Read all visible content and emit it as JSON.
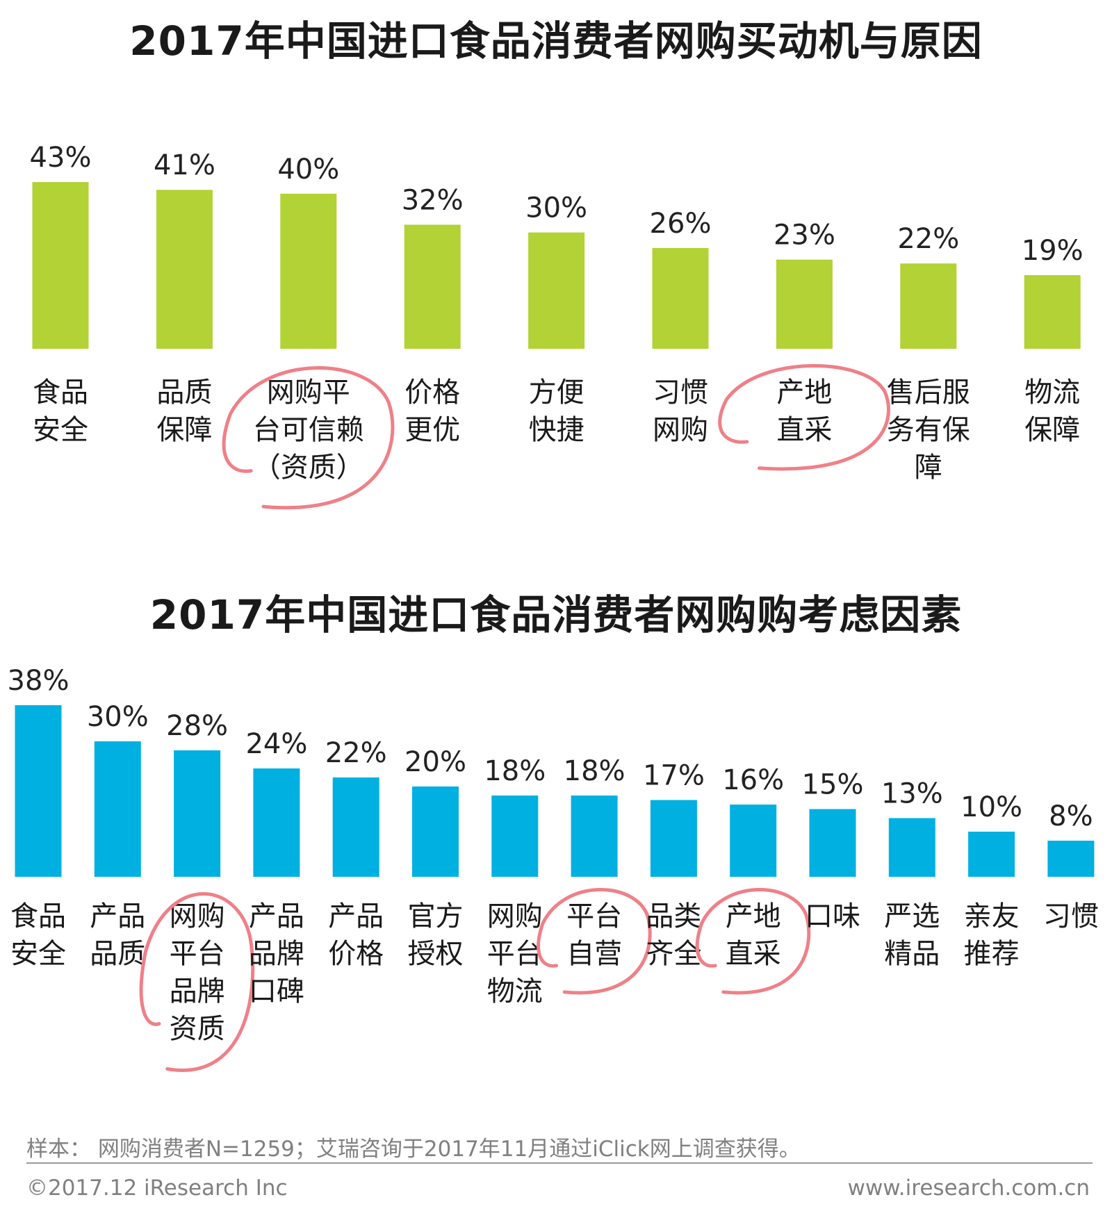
{
  "chart_data": [
    {
      "type": "bar",
      "title": "2017年中国进口食品消费者网购买动机与原因",
      "categories": [
        [
          "食品",
          "安全"
        ],
        [
          "品质",
          "保障"
        ],
        [
          "网购平",
          "台可信赖",
          "（资质）"
        ],
        [
          "价格",
          "更优"
        ],
        [
          "方便",
          "快捷"
        ],
        [
          "习惯",
          "网购"
        ],
        [
          "产地",
          "直采"
        ],
        [
          "售后服",
          "务有保",
          "障"
        ],
        [
          "物流",
          "保障"
        ]
      ],
      "values": [
        43,
        41,
        40,
        32,
        30,
        26,
        23,
        22,
        19
      ],
      "value_labels": [
        "43%",
        "41%",
        "40%",
        "32%",
        "30%",
        "26%",
        "23%",
        "22%",
        "19%"
      ],
      "highlighted": [
        2,
        6
      ],
      "bar_color": "#b2d235",
      "highlight_color": "#ef8088"
    },
    {
      "type": "bar",
      "title": "2017年中国进口食品消费者网购购考虑因素",
      "categories": [
        [
          "食品",
          "安全"
        ],
        [
          "产品",
          "品质"
        ],
        [
          "网购",
          "平台",
          "品牌",
          "资质"
        ],
        [
          "产品",
          "品牌",
          "口碑"
        ],
        [
          "产品",
          "价格"
        ],
        [
          "官方",
          "授权"
        ],
        [
          "网购",
          "平台",
          "物流"
        ],
        [
          "平台",
          "自营"
        ],
        [
          "品类",
          "齐全"
        ],
        [
          "产地",
          "直采"
        ],
        [
          "口味"
        ],
        [
          "严选",
          "精品"
        ],
        [
          "亲友",
          "推荐"
        ],
        [
          "习惯"
        ]
      ],
      "values": [
        38,
        30,
        28,
        24,
        22,
        20,
        18,
        18,
        17,
        16,
        15,
        13,
        10,
        8
      ],
      "value_labels": [
        "38%",
        "30%",
        "28%",
        "24%",
        "22%",
        "20%",
        "18%",
        "18%",
        "17%",
        "16%",
        "15%",
        "13%",
        "10%",
        "8%"
      ],
      "highlighted": [
        2,
        7,
        9
      ],
      "bar_color": "#00b0e0",
      "highlight_color": "#ef8088"
    }
  ],
  "footer": {
    "note": "样本： 网购消费者N=1259；艾瑞咨询于2017年11月通过iClick网上调查获得。",
    "copyright": "©2017.12 iResearch Inc",
    "website": "www.iresearch.com.cn"
  }
}
